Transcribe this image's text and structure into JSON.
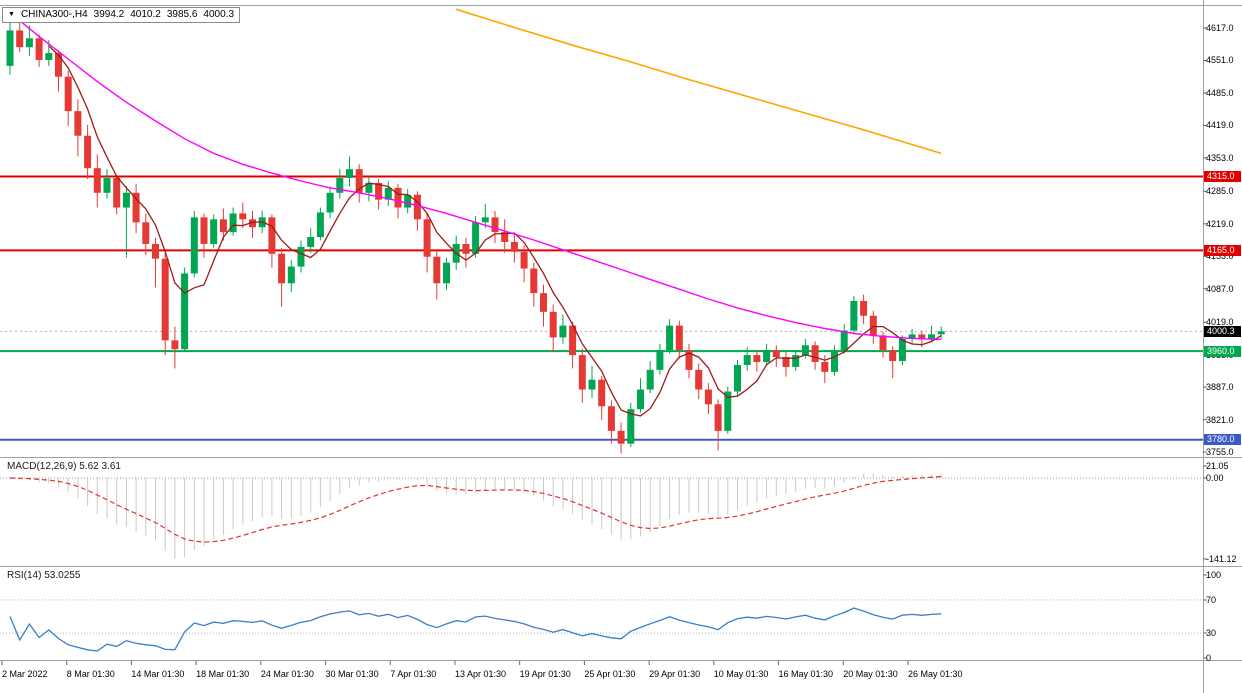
{
  "header": {
    "collapse_icon": "▼",
    "symbol_period": "CHINA300-,H4",
    "open": "3994.2",
    "high": "4010.2",
    "low": "3985.6",
    "close": "4000.3"
  },
  "panels": {
    "macd": {
      "label": "MACD(12,26,9) 5.62 3.61",
      "axis_labels": [
        "21.05",
        "0.00",
        "-141.12"
      ]
    },
    "rsi": {
      "label": "RSI(14) 53.0255",
      "axis_labels": [
        "100",
        "70",
        "30",
        "0"
      ]
    }
  },
  "chart_data": {
    "type": "candlestick",
    "title": "CHINA300-,H4",
    "timeframe": "H4",
    "ylim": [
      3744,
      4658
    ],
    "y_ticks": [
      4617.0,
      4551.0,
      4485.0,
      4419.0,
      4353.0,
      4285.0,
      4219.0,
      4153.0,
      4087.0,
      4019.0,
      3953.0,
      3887.0,
      3821.0,
      3755.0
    ],
    "x_labels": [
      "2 Mar 2022",
      "8 Mar 01:30",
      "14 Mar 01:30",
      "18 Mar 01:30",
      "24 Mar 01:30",
      "30 Mar 01:30",
      "7 Apr 01:30",
      "13 Apr 01:30",
      "19 Apr 01:30",
      "25 Apr 01:30",
      "29 Apr 01:30",
      "10 May 01:30",
      "16 May 01:30",
      "20 May 01:30",
      "26 May 01:30"
    ],
    "ohlc": [
      [
        4540,
        4642,
        4522,
        4612
      ],
      [
        4612,
        4650,
        4568,
        4578
      ],
      [
        4578,
        4622,
        4560,
        4596
      ],
      [
        4596,
        4604,
        4538,
        4552
      ],
      [
        4552,
        4592,
        4540,
        4566
      ],
      [
        4566,
        4572,
        4488,
        4518
      ],
      [
        4518,
        4530,
        4418,
        4448
      ],
      [
        4448,
        4472,
        4356,
        4398
      ],
      [
        4398,
        4420,
        4310,
        4332
      ],
      [
        4332,
        4360,
        4252,
        4282
      ],
      [
        4282,
        4330,
        4270,
        4312
      ],
      [
        4312,
        4318,
        4238,
        4252
      ],
      [
        4252,
        4296,
        4150,
        4282
      ],
      [
        4282,
        4300,
        4200,
        4222
      ],
      [
        4222,
        4240,
        4155,
        4178
      ],
      [
        4178,
        4190,
        4090,
        4148
      ],
      [
        4148,
        4160,
        3952,
        3982
      ],
      [
        3982,
        4010,
        3925,
        3964
      ],
      [
        3964,
        4130,
        3958,
        4118
      ],
      [
        4118,
        4245,
        4110,
        4232
      ],
      [
        4232,
        4240,
        4150,
        4178
      ],
      [
        4178,
        4238,
        4170,
        4228
      ],
      [
        4228,
        4250,
        4185,
        4202
      ],
      [
        4202,
        4252,
        4195,
        4240
      ],
      [
        4240,
        4262,
        4210,
        4228
      ],
      [
        4228,
        4245,
        4190,
        4212
      ],
      [
        4212,
        4246,
        4200,
        4232
      ],
      [
        4232,
        4238,
        4130,
        4158
      ],
      [
        4158,
        4170,
        4050,
        4098
      ],
      [
        4098,
        4145,
        4080,
        4132
      ],
      [
        4132,
        4185,
        4120,
        4172
      ],
      [
        4172,
        4210,
        4160,
        4192
      ],
      [
        4192,
        4252,
        4185,
        4242
      ],
      [
        4242,
        4295,
        4230,
        4282
      ],
      [
        4282,
        4330,
        4270,
        4312
      ],
      [
        4312,
        4356,
        4295,
        4330
      ],
      [
        4330,
        4340,
        4262,
        4282
      ],
      [
        4282,
        4315,
        4265,
        4302
      ],
      [
        4302,
        4310,
        4248,
        4268
      ],
      [
        4268,
        4305,
        4255,
        4292
      ],
      [
        4292,
        4300,
        4230,
        4252
      ],
      [
        4252,
        4290,
        4240,
        4278
      ],
      [
        4278,
        4285,
        4205,
        4228
      ],
      [
        4228,
        4240,
        4120,
        4152
      ],
      [
        4152,
        4165,
        4065,
        4098
      ],
      [
        4098,
        4150,
        4085,
        4140
      ],
      [
        4140,
        4195,
        4125,
        4178
      ],
      [
        4178,
        4190,
        4130,
        4158
      ],
      [
        4158,
        4235,
        4150,
        4222
      ],
      [
        4222,
        4260,
        4210,
        4232
      ],
      [
        4232,
        4245,
        4180,
        4202
      ],
      [
        4202,
        4228,
        4160,
        4182
      ],
      [
        4182,
        4200,
        4140,
        4162
      ],
      [
        4162,
        4175,
        4100,
        4128
      ],
      [
        4128,
        4140,
        4050,
        4078
      ],
      [
        4078,
        4095,
        4010,
        4040
      ],
      [
        4040,
        4055,
        3958,
        3988
      ],
      [
        3988,
        4035,
        3975,
        4012
      ],
      [
        4012,
        4020,
        3925,
        3952
      ],
      [
        3952,
        3965,
        3855,
        3882
      ],
      [
        3882,
        3930,
        3865,
        3902
      ],
      [
        3902,
        3910,
        3820,
        3848
      ],
      [
        3848,
        3860,
        3772,
        3798
      ],
      [
        3798,
        3815,
        3752,
        3772
      ],
      [
        3772,
        3855,
        3765,
        3842
      ],
      [
        3842,
        3905,
        3835,
        3882
      ],
      [
        3882,
        3940,
        3875,
        3922
      ],
      [
        3922,
        3975,
        3912,
        3962
      ],
      [
        3962,
        4025,
        3955,
        4012
      ],
      [
        4012,
        4022,
        3945,
        3962
      ],
      [
        3962,
        3975,
        3905,
        3922
      ],
      [
        3922,
        3935,
        3862,
        3882
      ],
      [
        3882,
        3895,
        3832,
        3852
      ],
      [
        3852,
        3862,
        3758,
        3798
      ],
      [
        3798,
        3888,
        3792,
        3878
      ],
      [
        3878,
        3942,
        3870,
        3932
      ],
      [
        3932,
        3968,
        3920,
        3952
      ],
      [
        3952,
        3962,
        3918,
        3938
      ],
      [
        3938,
        3975,
        3930,
        3962
      ],
      [
        3962,
        3972,
        3928,
        3948
      ],
      [
        3948,
        3958,
        3908,
        3928
      ],
      [
        3928,
        3962,
        3920,
        3952
      ],
      [
        3952,
        3985,
        3945,
        3972
      ],
      [
        3972,
        3980,
        3922,
        3938
      ],
      [
        3938,
        3952,
        3895,
        3918
      ],
      [
        3918,
        3972,
        3910,
        3962
      ],
      [
        3962,
        4015,
        3955,
        4002
      ],
      [
        4002,
        4072,
        3995,
        4062
      ],
      [
        4062,
        4075,
        4015,
        4032
      ],
      [
        4032,
        4042,
        3975,
        3992
      ],
      [
        3992,
        4000,
        3948,
        3962
      ],
      [
        3962,
        3970,
        3905,
        3940
      ],
      [
        3940,
        3992,
        3932,
        3985
      ],
      [
        3985,
        4005,
        3975,
        3994
      ],
      [
        3994,
        4002,
        3968,
        3985
      ],
      [
        3985,
        4012,
        3978,
        3994.2
      ],
      [
        3994.2,
        4010.2,
        3985.6,
        4000.3
      ]
    ],
    "levels": [
      {
        "price": 4315.0,
        "label": "4315.0",
        "color": "#e00000",
        "style": "solid"
      },
      {
        "price": 4165.0,
        "label": "4165.0",
        "color": "#e00000",
        "style": "solid"
      },
      {
        "price": 4000.3,
        "label": "4000.3",
        "color": "#000000",
        "style": "dotted"
      },
      {
        "price": 3960.0,
        "label": "3960.0",
        "color": "#00a94c",
        "style": "solid"
      },
      {
        "price": 3780.0,
        "label": "3780.0",
        "color": "#3a5bc7",
        "style": "solid"
      }
    ],
    "overlays": {
      "ma_fast": {
        "name": "fast-ma",
        "period": 5,
        "color": "#9e1a1a"
      },
      "ma_medium": {
        "name": "medium-ma",
        "color": "#ff00ff",
        "points": [
          [
            0,
            4648
          ],
          [
            3,
            4600
          ],
          [
            6,
            4554
          ],
          [
            9,
            4508
          ],
          [
            12,
            4466
          ],
          [
            15,
            4428
          ],
          [
            18,
            4392
          ],
          [
            21,
            4362
          ],
          [
            24,
            4340
          ],
          [
            27,
            4322
          ],
          [
            30,
            4306
          ],
          [
            33,
            4292
          ],
          [
            36,
            4282
          ],
          [
            39,
            4270
          ],
          [
            42,
            4256
          ],
          [
            45,
            4240
          ],
          [
            48,
            4222
          ],
          [
            51,
            4204
          ],
          [
            54,
            4186
          ],
          [
            57,
            4166
          ],
          [
            60,
            4146
          ],
          [
            63,
            4126
          ],
          [
            66,
            4106
          ],
          [
            69,
            4086
          ],
          [
            72,
            4066
          ],
          [
            75,
            4048
          ],
          [
            78,
            4032
          ],
          [
            81,
            4018
          ],
          [
            84,
            4006
          ],
          [
            87,
            3996
          ],
          [
            90,
            3990
          ],
          [
            93,
            3986
          ],
          [
            96,
            3984
          ]
        ]
      },
      "ma_long": {
        "name": "long-ma",
        "color": "#ffa500",
        "points": [
          [
            46,
            4655
          ],
          [
            52,
            4618
          ],
          [
            58,
            4582
          ],
          [
            64,
            4548
          ],
          [
            70,
            4512
          ],
          [
            76,
            4478
          ],
          [
            82,
            4444
          ],
          [
            88,
            4410
          ],
          [
            92,
            4386
          ],
          [
            96,
            4362
          ]
        ]
      }
    },
    "indicators": {
      "macd": {
        "fast": 12,
        "slow": 26,
        "signal": 9,
        "value": 5.62,
        "signal_value": 3.61,
        "range_min": -141.12,
        "range_max": 21.05,
        "histogram_color": "#c9c9c9",
        "signal_color": "#e03333"
      },
      "rsi": {
        "period": 14,
        "value": 53.0255,
        "color": "#3b7fc4",
        "levels": [
          70,
          30
        ]
      }
    },
    "candle_colors": {
      "bull": "#00a651",
      "bear": "#e53935"
    }
  }
}
